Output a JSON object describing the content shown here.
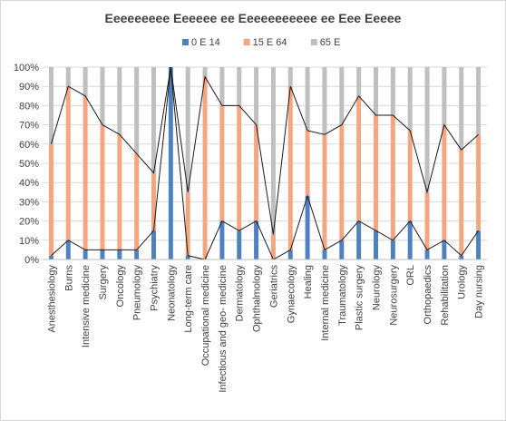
{
  "chart_data": {
    "type": "bar",
    "stacked": "percent",
    "title": "Eeeeeeeee Eeeeee ee Eeeeeeeeeee ee Eee Eeeee",
    "xlabel": "",
    "ylabel": "",
    "ylim": [
      0,
      100
    ],
    "yticks": [
      "0%",
      "10%",
      "20%",
      "30%",
      "40%",
      "50%",
      "60%",
      "70%",
      "80%",
      "90%",
      "100%"
    ],
    "grid": true,
    "legend_position": "top",
    "categories": [
      "Anesthesiology",
      "Burns",
      "Intensive medicine",
      "Surgery",
      "Oncology",
      "Pneumology",
      "Psychiatry",
      "Neonatology",
      "Long-term care",
      "Occupational medicine",
      "Infectious and geo- medicine",
      "Dermatology",
      "Ophthalmology",
      "Geriatrics",
      "Gynaecology",
      "Healing",
      "Internal medicine",
      "Traumatology",
      "Plastic surgery",
      "Neurology",
      "Neurosurgery",
      "ORL",
      "Orthopaedics",
      "Rehabilitation",
      "Urology",
      "Day nursing"
    ],
    "series": [
      {
        "name": "0 E 14",
        "color": "#4f81bd",
        "values": [
          2,
          10,
          5,
          5,
          5,
          5,
          15,
          100,
          2,
          0,
          20,
          15,
          20,
          0,
          5,
          33,
          5,
          10,
          20,
          15,
          10,
          20,
          5,
          10,
          2,
          15
        ]
      },
      {
        "name": "15 E 64",
        "color": "#f4a582",
        "values": [
          58,
          80,
          80,
          65,
          60,
          50,
          30,
          0,
          33,
          95,
          60,
          65,
          50,
          13,
          85,
          34,
          60,
          60,
          65,
          60,
          65,
          47,
          30,
          60,
          55,
          50
        ]
      },
      {
        "name": "65 E",
        "color": "#bfbfbf",
        "values": [
          40,
          10,
          15,
          30,
          35,
          45,
          55,
          0,
          65,
          5,
          20,
          20,
          30,
          87,
          10,
          33,
          35,
          30,
          15,
          25,
          25,
          33,
          65,
          30,
          43,
          35
        ]
      }
    ]
  }
}
